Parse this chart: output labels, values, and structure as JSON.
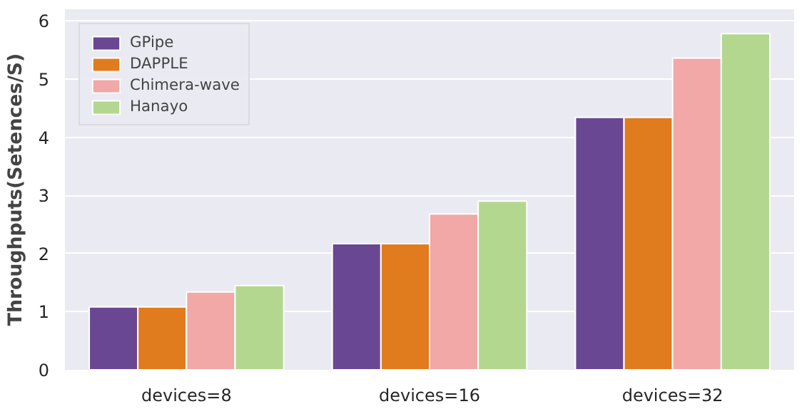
{
  "chart_data": {
    "type": "bar",
    "ylabel": "Throughputs(Setences/S)",
    "categories": [
      "devices=8",
      "devices=16",
      "devices=32"
    ],
    "series": [
      {
        "name": "GPipe",
        "color": "#6a4792",
        "values": [
          1.08,
          2.17,
          4.34
        ]
      },
      {
        "name": "DAPPLE",
        "color": "#e07b1e",
        "values": [
          1.08,
          2.17,
          4.34
        ]
      },
      {
        "name": "Chimera-wave",
        "color": "#f1a8a6",
        "values": [
          1.34,
          2.68,
          5.36
        ]
      },
      {
        "name": "Hanayo",
        "color": "#b3d78f",
        "values": [
          1.45,
          2.9,
          5.78
        ]
      }
    ],
    "ylim": [
      0,
      6.2
    ],
    "yticks": [
      0,
      1,
      2,
      3,
      4,
      5,
      6
    ],
    "grid": "y",
    "legend": "top left"
  }
}
